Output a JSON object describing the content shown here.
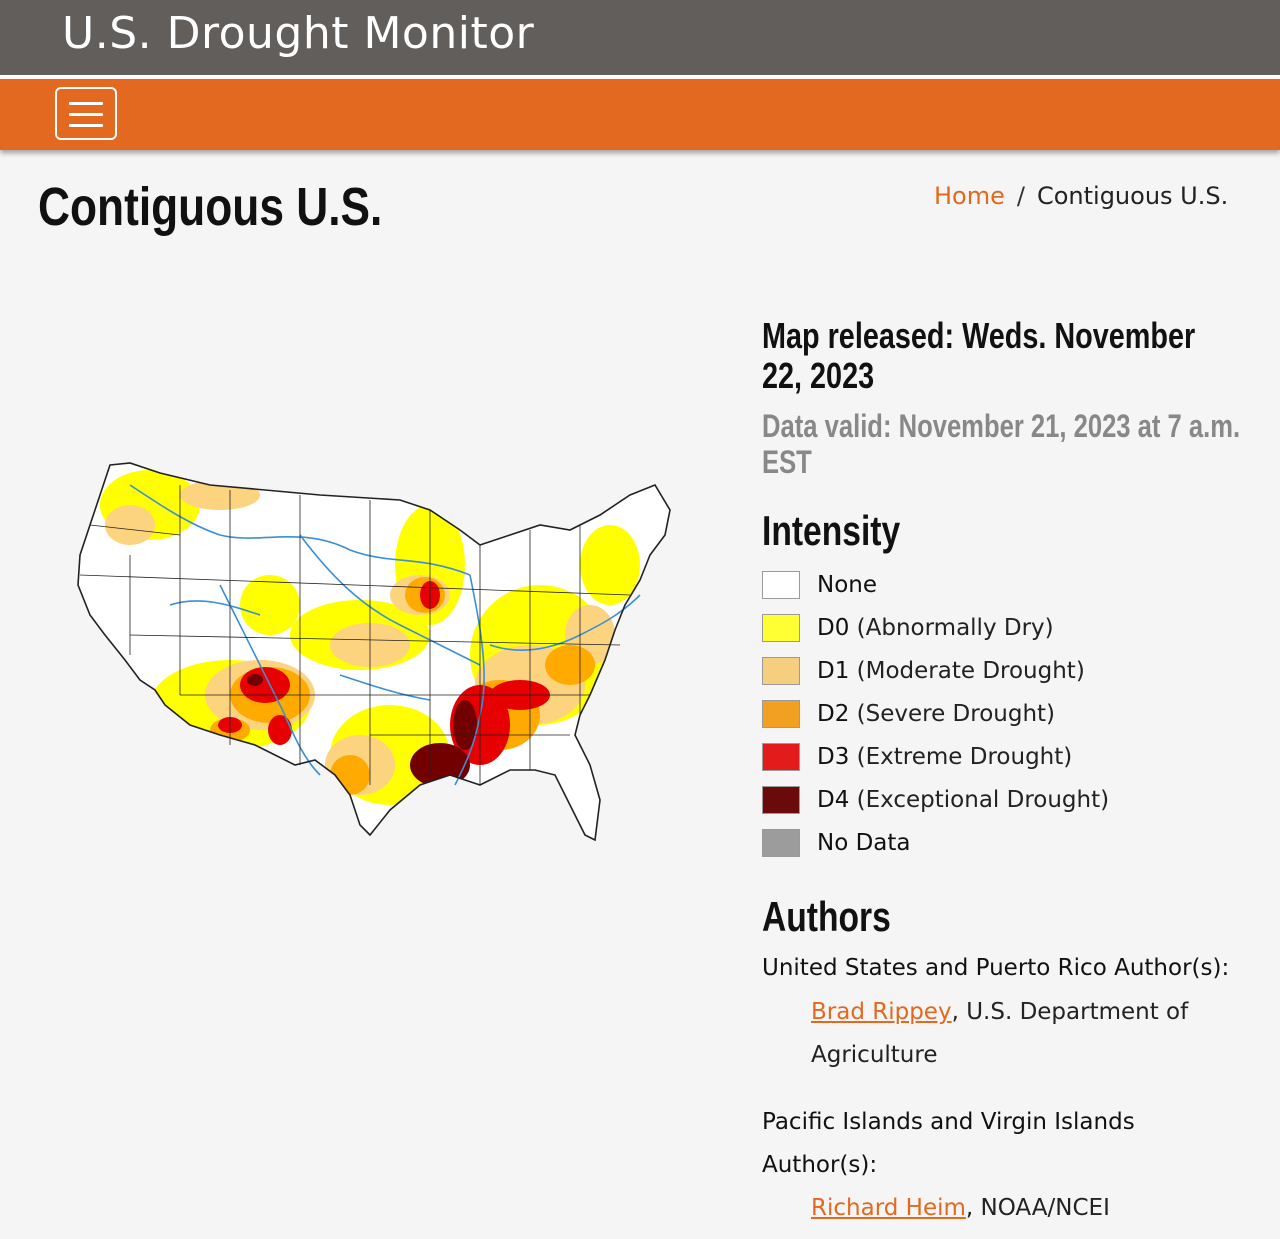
{
  "header": {
    "site_title": "U.S. Drought Monitor"
  },
  "nav": {
    "menu_icon": "hamburger-menu-icon"
  },
  "page": {
    "title": "Contiguous U.S."
  },
  "breadcrumb": {
    "home": "Home",
    "separator": "/",
    "current": "Contiguous U.S."
  },
  "map_info": {
    "released": "Map released: Weds. November 22, 2023",
    "valid": "Data valid: November 21, 2023 at 7 a.m. EST"
  },
  "intensity": {
    "heading": "Intensity",
    "items": [
      {
        "code": "None",
        "desc": "",
        "color": "#ffffff"
      },
      {
        "code": "D0",
        "desc": "(Abnormally Dry)",
        "color": "#ffff00"
      },
      {
        "code": "D1",
        "desc": "(Moderate Drought)",
        "color": "#fcd37f"
      },
      {
        "code": "D2",
        "desc": "(Severe Drought)",
        "color": "#ffaa00"
      },
      {
        "code": "D3",
        "desc": "(Extreme Drought)",
        "color": "#e60000"
      },
      {
        "code": "D4",
        "desc": "(Exceptional Drought)",
        "color": "#730000"
      },
      {
        "code": "No Data",
        "desc": "",
        "color": "#9c9c9c"
      }
    ]
  },
  "authors": {
    "heading": "Authors",
    "us_label": "United States and Puerto Rico Author(s):",
    "us_author_name": "Brad Rippey",
    "us_author_org": ", U.S. Department of Agriculture",
    "pi_label": "Pacific Islands and Virgin Islands Author(s):",
    "pi_author_name": "Richard Heim",
    "pi_author_org": ", NOAA/NCEI"
  },
  "colors": {
    "header_bg": "#625e5b",
    "nav_bg": "#e2691f",
    "link": "#e2691f"
  }
}
